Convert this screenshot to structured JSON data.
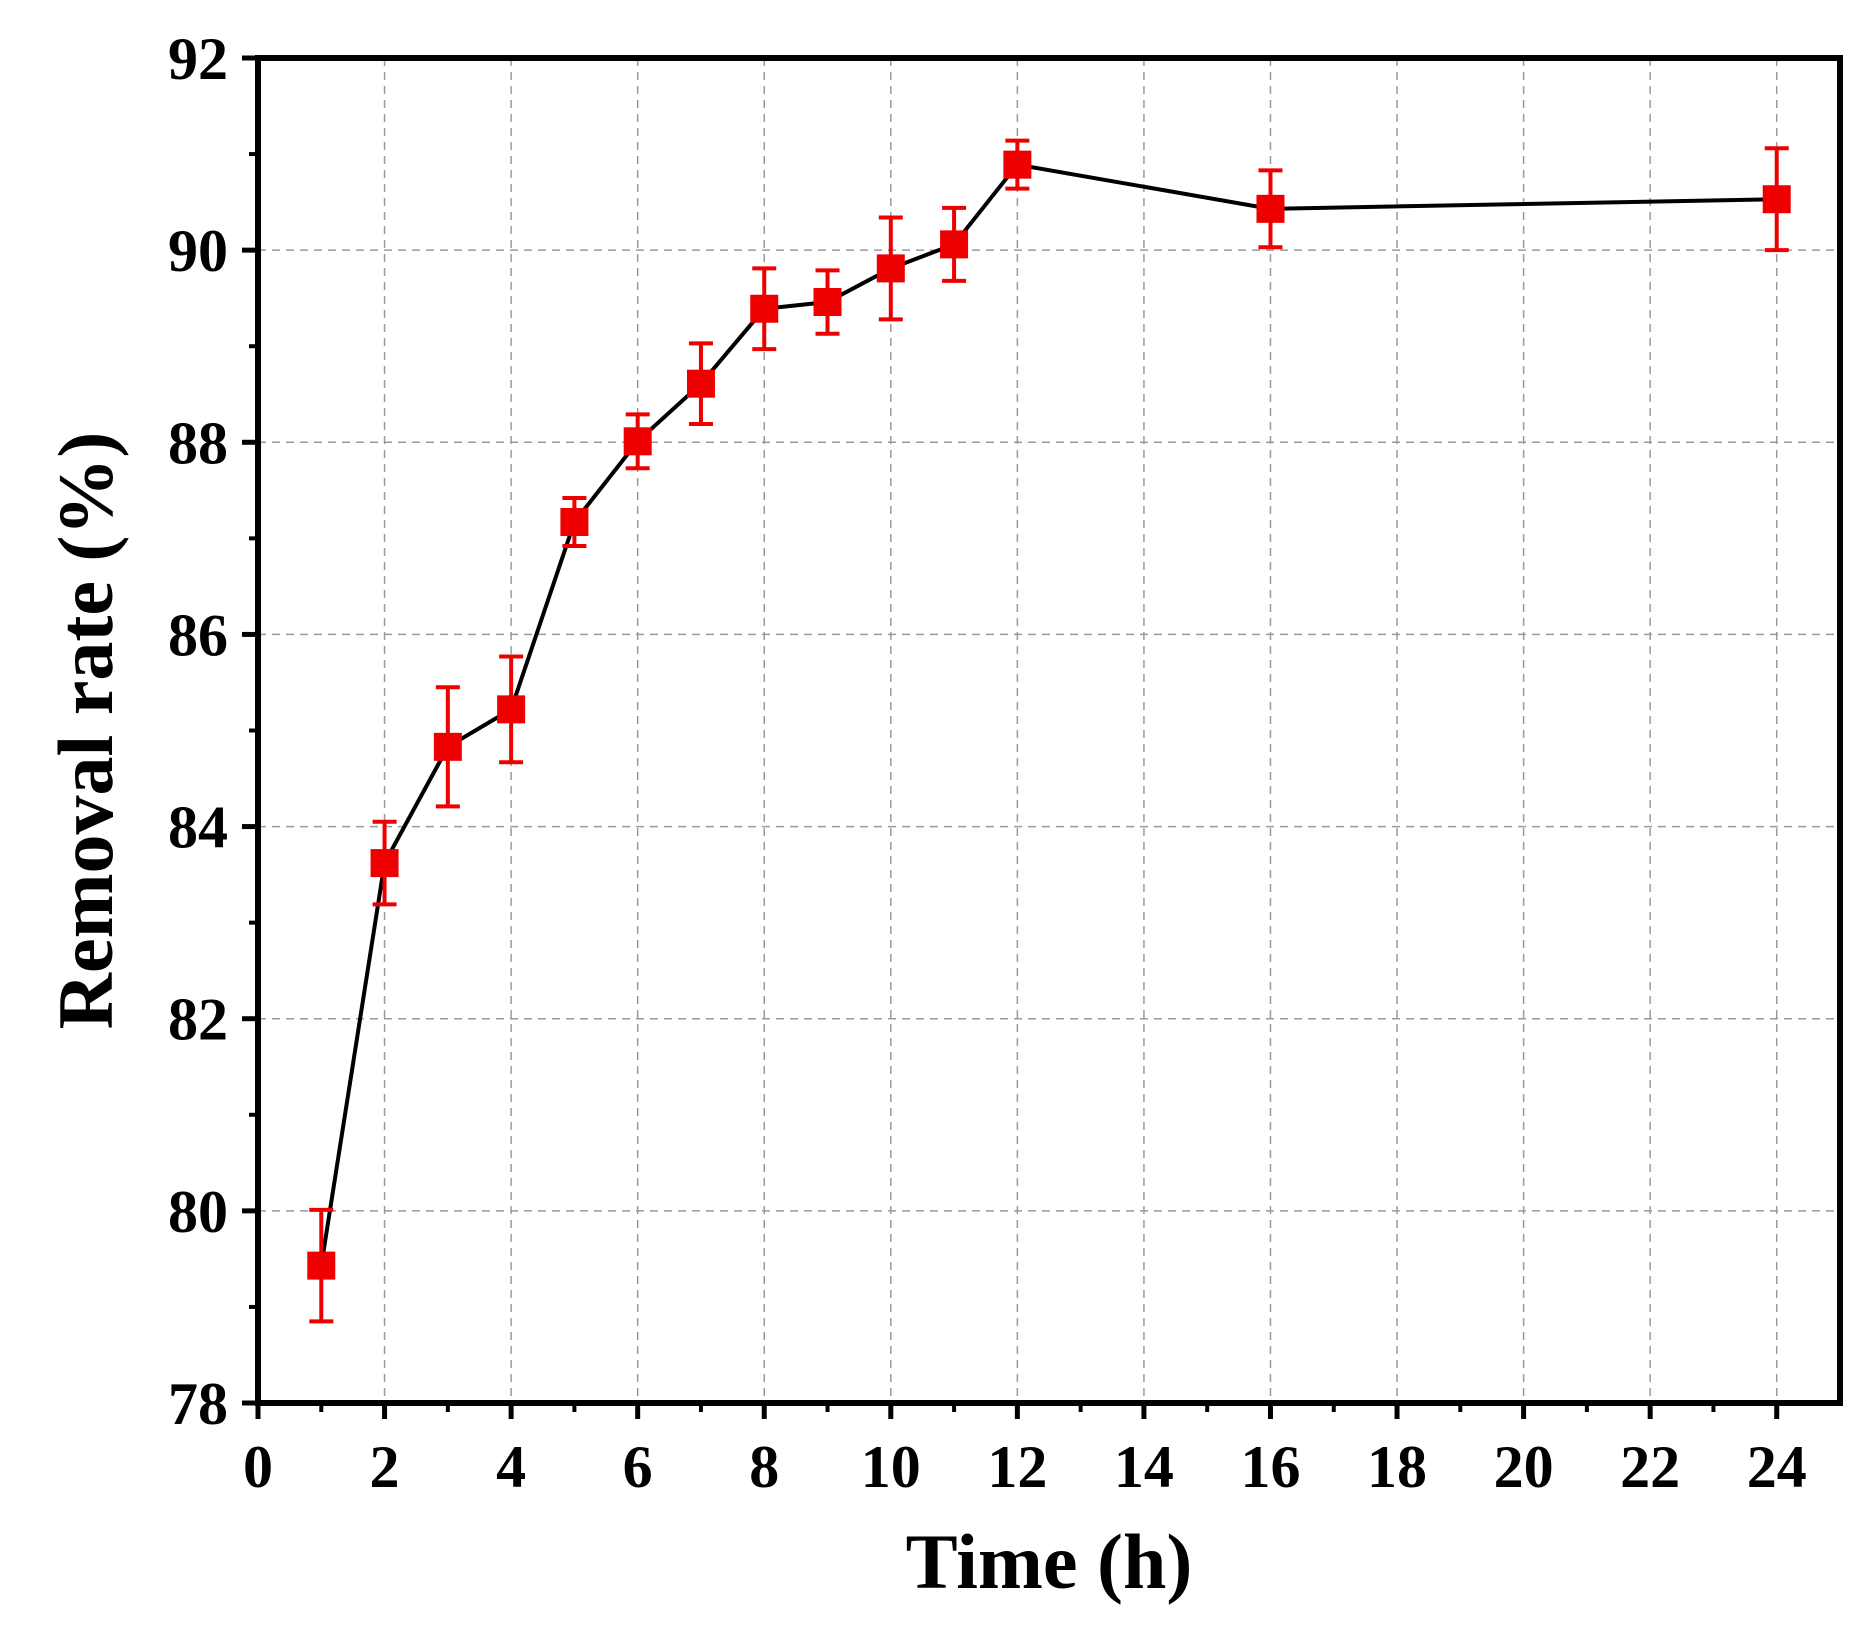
{
  "chart_data": {
    "type": "scatter",
    "title": "",
    "xlabel": "Time (h)",
    "ylabel": "Removal rate (%)",
    "xlim": [
      0,
      25
    ],
    "ylim": [
      78,
      92
    ],
    "x_ticks": [
      0,
      2,
      4,
      6,
      8,
      10,
      12,
      14,
      16,
      18,
      20,
      22,
      24
    ],
    "y_ticks": [
      78,
      80,
      82,
      84,
      86,
      88,
      90,
      92
    ],
    "grid": true,
    "legend": "none",
    "series": [
      {
        "x": [
          1,
          2,
          3,
          4,
          5,
          6,
          7,
          8,
          9,
          10,
          11,
          12,
          16,
          24
        ],
        "y": [
          79.43,
          83.62,
          84.83,
          85.22,
          87.17,
          88.01,
          88.61,
          89.39,
          89.46,
          89.81,
          90.06,
          90.89,
          90.43,
          90.53
        ],
        "error": [
          0.58,
          0.43,
          0.62,
          0.55,
          0.25,
          0.28,
          0.42,
          0.42,
          0.33,
          0.53,
          0.38,
          0.25,
          0.4,
          0.53
        ],
        "marker": "square",
        "marker_color": "#ee0000",
        "line_color": "#000000"
      }
    ]
  }
}
